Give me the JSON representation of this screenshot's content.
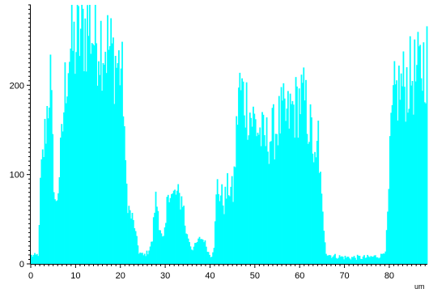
{
  "chart_data": {
    "type": "bar",
    "title": "",
    "xlabel": "um",
    "ylabel": "",
    "xlim": [
      0,
      88.5
    ],
    "ylim": [
      0,
      290
    ],
    "grid": false,
    "bar_color": "#00ffff",
    "x_ticks": [
      0,
      10,
      20,
      30,
      40,
      50,
      60,
      70,
      80
    ],
    "y_ticks": [
      0,
      100,
      200
    ],
    "x_step": 0.25,
    "profile": [
      [
        0,
        8
      ],
      [
        1.0,
        8
      ],
      [
        1.6,
        10
      ],
      [
        2.0,
        90
      ],
      [
        2.8,
        135
      ],
      [
        3.6,
        180
      ],
      [
        4.2,
        220
      ],
      [
        4.8,
        120
      ],
      [
        5.4,
        60
      ],
      [
        6.0,
        90
      ],
      [
        6.8,
        140
      ],
      [
        7.6,
        210
      ],
      [
        8.4,
        245
      ],
      [
        10,
        250
      ],
      [
        11,
        265
      ],
      [
        12,
        270
      ],
      [
        13,
        275
      ],
      [
        14,
        260
      ],
      [
        15,
        262
      ],
      [
        16,
        255
      ],
      [
        17,
        250
      ],
      [
        18,
        240
      ],
      [
        19,
        230
      ],
      [
        20,
        225
      ],
      [
        20.6,
        190
      ],
      [
        21.0,
        100
      ],
      [
        21.8,
        60
      ],
      [
        22.6,
        50
      ],
      [
        23.4,
        30
      ],
      [
        24.0,
        12
      ],
      [
        25.0,
        8
      ],
      [
        26.0,
        12
      ],
      [
        27.0,
        25
      ],
      [
        27.6,
        75
      ],
      [
        28.2,
        65
      ],
      [
        28.8,
        35
      ],
      [
        29.4,
        25
      ],
      [
        30.0,
        45
      ],
      [
        30.6,
        95
      ],
      [
        31.4,
        75
      ],
      [
        32.2,
        80
      ],
      [
        33.0,
        75
      ],
      [
        33.8,
        75
      ],
      [
        34.4,
        35
      ],
      [
        35.0,
        28
      ],
      [
        35.8,
        15
      ],
      [
        36.6,
        20
      ],
      [
        37.6,
        28
      ],
      [
        38.6,
        25
      ],
      [
        39.6,
        10
      ],
      [
        40.2,
        8
      ],
      [
        40.8,
        20
      ],
      [
        41.4,
        90
      ],
      [
        42.2,
        80
      ],
      [
        43.0,
        70
      ],
      [
        44.0,
        90
      ],
      [
        45.0,
        80
      ],
      [
        45.6,
        130
      ],
      [
        46.2,
        200
      ],
      [
        47.0,
        195
      ],
      [
        48.0,
        185
      ],
      [
        49.0,
        170
      ],
      [
        50.0,
        160
      ],
      [
        51.0,
        150
      ],
      [
        52.0,
        140
      ],
      [
        53.0,
        145
      ],
      [
        54.0,
        150
      ],
      [
        55.0,
        160
      ],
      [
        56.0,
        170
      ],
      [
        57.0,
        165
      ],
      [
        58.0,
        175
      ],
      [
        59.0,
        180
      ],
      [
        60.0,
        190
      ],
      [
        61.0,
        185
      ],
      [
        62.0,
        160
      ],
      [
        62.8,
        140
      ],
      [
        63.4,
        100
      ],
      [
        64.0,
        150
      ],
      [
        64.6,
        80
      ],
      [
        65.2,
        40
      ],
      [
        65.8,
        10
      ],
      [
        67.0,
        8
      ],
      [
        70.0,
        6
      ],
      [
        75.0,
        6
      ],
      [
        78.0,
        8
      ],
      [
        79.0,
        15
      ],
      [
        79.6,
        60
      ],
      [
        80.2,
        150
      ],
      [
        81.0,
        190
      ],
      [
        82.0,
        200
      ],
      [
        83.0,
        205
      ],
      [
        84.0,
        210
      ],
      [
        85.0,
        215
      ],
      [
        86.0,
        215
      ],
      [
        87.0,
        225
      ],
      [
        88.0,
        235
      ],
      [
        88.5,
        235
      ]
    ]
  }
}
